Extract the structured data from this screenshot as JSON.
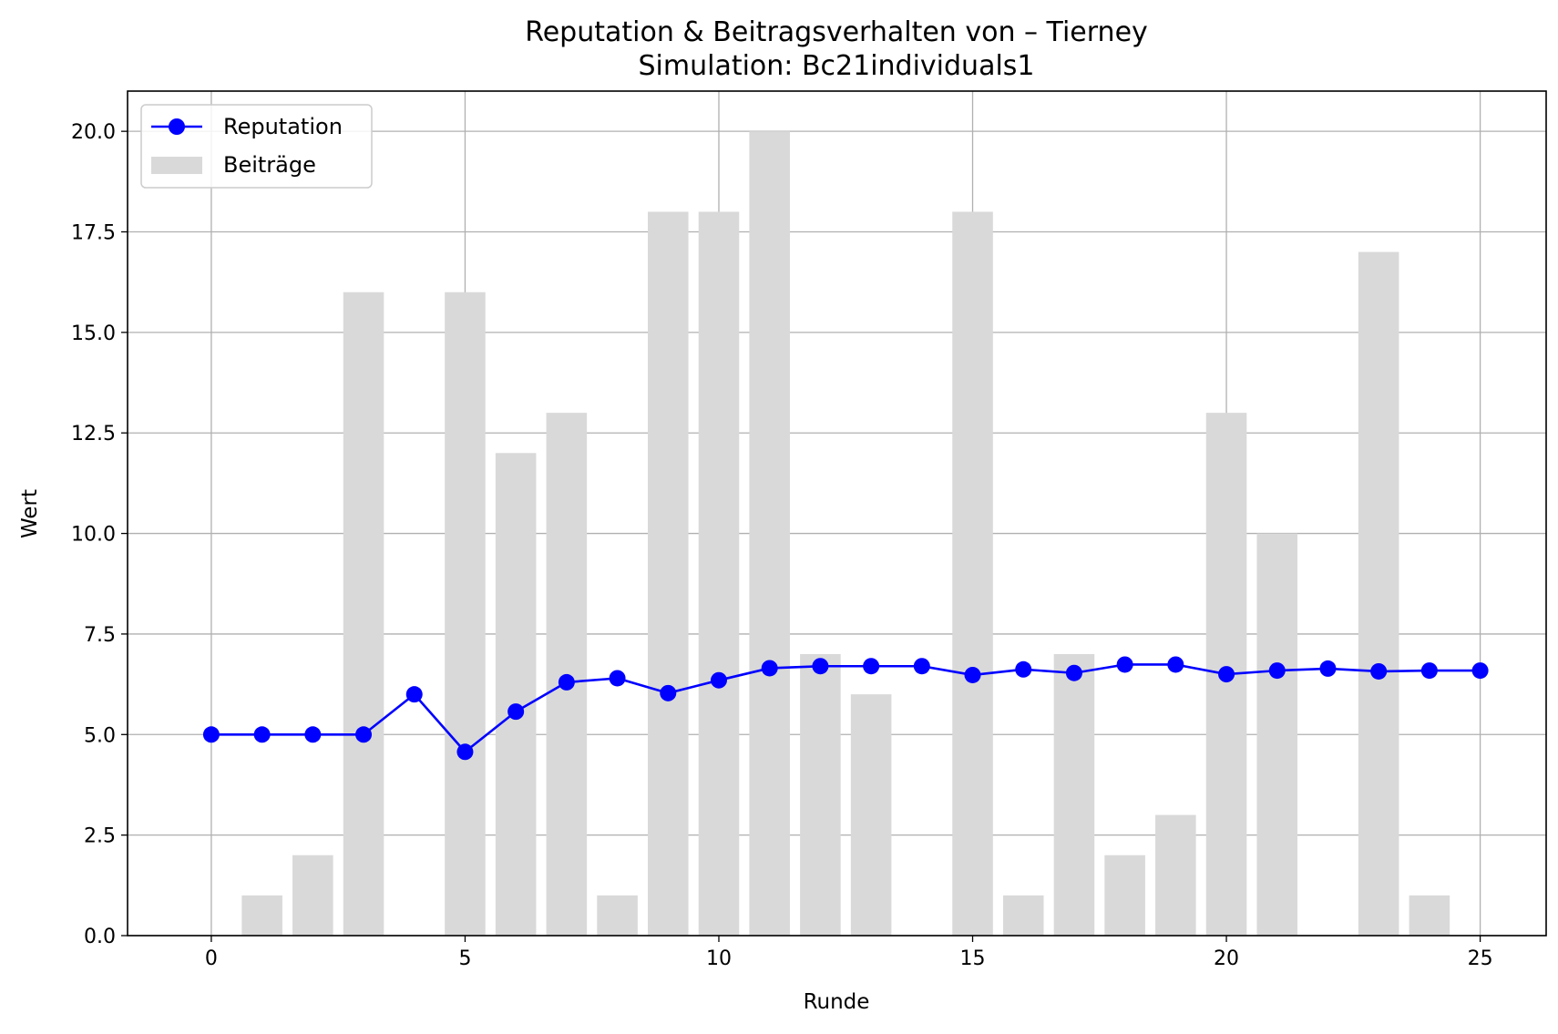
{
  "chart_data": {
    "type": "bar",
    "title": "Reputation & Beitragsverhalten von – Tierney",
    "subtitle": "Simulation: Bc21individuals1",
    "xlabel": "Runde",
    "ylabel": "Wert",
    "xlim": [
      -1.65,
      26.3
    ],
    "ylim": [
      0,
      21
    ],
    "x_ticks": [
      0,
      5,
      10,
      15,
      20,
      25
    ],
    "x_tick_labels": [
      "0",
      "5",
      "10",
      "15",
      "20",
      "25"
    ],
    "y_ticks": [
      0,
      2.5,
      5,
      7.5,
      10,
      12.5,
      15,
      17.5,
      20
    ],
    "y_tick_labels": [
      "0.0",
      "2.5",
      "5.0",
      "7.5",
      "10.0",
      "12.5",
      "15.0",
      "17.5",
      "20.0"
    ],
    "grid": true,
    "legend_position": "top-left",
    "x": [
      0,
      1,
      2,
      3,
      4,
      5,
      6,
      7,
      8,
      9,
      10,
      11,
      12,
      13,
      14,
      15,
      16,
      17,
      18,
      19,
      20,
      21,
      22,
      23,
      24,
      25
    ],
    "series": [
      {
        "name": "Reputation",
        "type": "line",
        "color": "#0000ff",
        "marker": "circle",
        "values": [
          5.0,
          5.0,
          5.0,
          5.0,
          6.0,
          4.57,
          5.57,
          6.3,
          6.4,
          6.03,
          6.35,
          6.65,
          6.7,
          6.7,
          6.7,
          6.48,
          6.62,
          6.53,
          6.74,
          6.74,
          6.5,
          6.59,
          6.64,
          6.57,
          6.59,
          6.59
        ]
      },
      {
        "name": "Beiträge",
        "type": "bar",
        "color": "#d9d9d9",
        "values": [
          0,
          1,
          2,
          16,
          0,
          16,
          12,
          13,
          1,
          18,
          18,
          20,
          7,
          6,
          0,
          18,
          1,
          7,
          2,
          3,
          13,
          10,
          0,
          17,
          1,
          0
        ]
      }
    ]
  }
}
